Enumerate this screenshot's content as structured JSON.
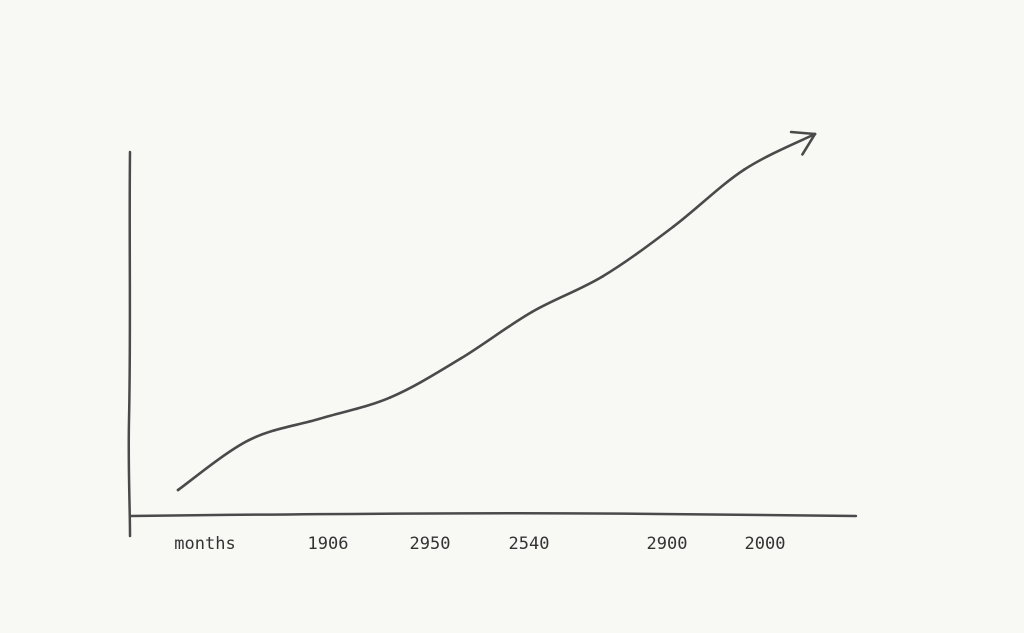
{
  "chart_data": {
    "type": "line",
    "title": "",
    "xlabel": "",
    "ylabel": "",
    "x_tick_labels": [
      "months",
      "1906",
      "2950",
      "2540",
      "2900",
      "2000"
    ],
    "series": [
      {
        "values": [
          0.0,
          0.14,
          0.2,
          0.26,
          0.37,
          0.5,
          0.6,
          0.74,
          0.9,
          1.0
        ]
      }
    ],
    "ylim": [
      0,
      1
    ],
    "grid": false,
    "legend": "none",
    "trend_arrow": true,
    "colors": {
      "background": "#f8f8f5",
      "ink": "#4a4a4a",
      "text": "#333333"
    }
  }
}
